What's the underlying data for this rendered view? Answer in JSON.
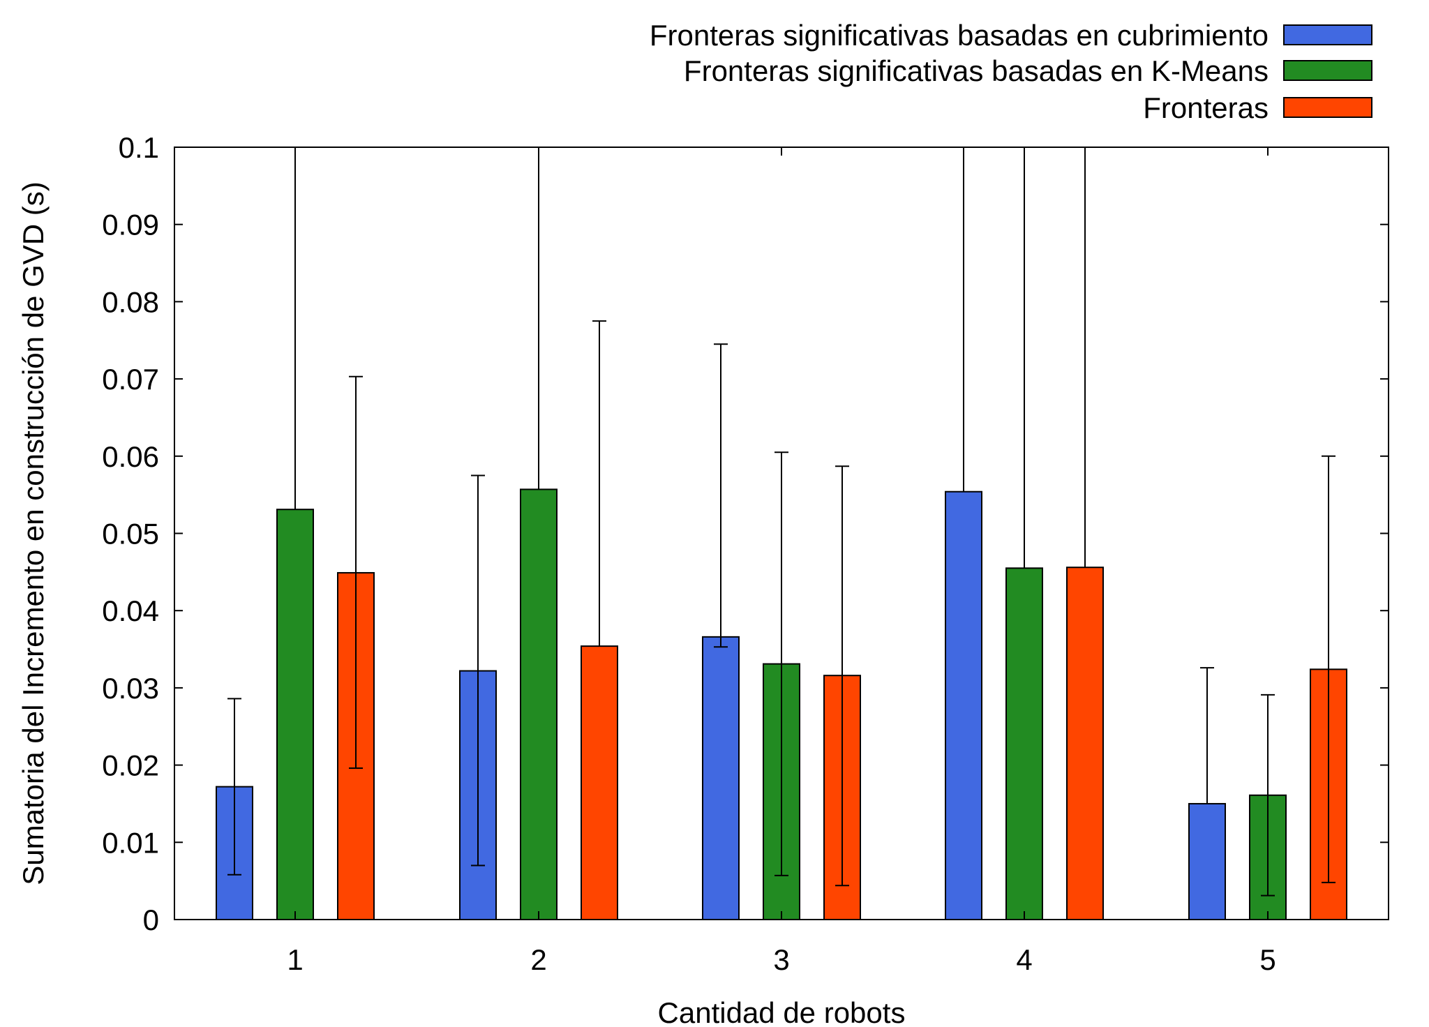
{
  "chart_data": {
    "type": "bar",
    "title": "",
    "xlabel": "Cantidad de robots",
    "ylabel": "Sumatoria del Incremento en construcción de GVD (s)",
    "categories": [
      "1",
      "2",
      "3",
      "4",
      "5"
    ],
    "ylim": [
      0,
      0.1
    ],
    "yticks": [
      "0",
      "0.01",
      "0.02",
      "0.03",
      "0.04",
      "0.05",
      "0.06",
      "0.07",
      "0.08",
      "0.09",
      "0.1"
    ],
    "grid": false,
    "legend_position": "top-right, above plot",
    "error_bars": true,
    "series": [
      {
        "name": "Fronteras significativas basadas en cubrimiento",
        "color": "#4169E1",
        "values": [
          0.0172,
          0.0322,
          0.0366,
          0.0554,
          0.015
        ],
        "error_low": [
          0.0058,
          0.007,
          0.0353,
          0.0554,
          0.015
        ],
        "error_high": [
          0.0286,
          0.0575,
          0.0745,
          0.1,
          0.0326
        ]
      },
      {
        "name": "Fronteras significativas basadas en K-Means",
        "color": "#228B22",
        "values": [
          0.0531,
          0.0557,
          0.0331,
          0.0455,
          0.0161
        ],
        "error_low": [
          0.0531,
          0.0557,
          0.0057,
          0.0455,
          0.0031
        ],
        "error_high": [
          0.1,
          0.1,
          0.0605,
          0.1,
          0.0291
        ]
      },
      {
        "name": "Fronteras",
        "color": "#FF4500",
        "values": [
          0.0449,
          0.0354,
          0.0316,
          0.0456,
          0.0324
        ],
        "error_low": [
          0.0196,
          0.0354,
          0.0044,
          0.0456,
          0.0048
        ],
        "error_high": [
          0.0703,
          0.0775,
          0.0587,
          0.1,
          0.06
        ]
      }
    ]
  }
}
